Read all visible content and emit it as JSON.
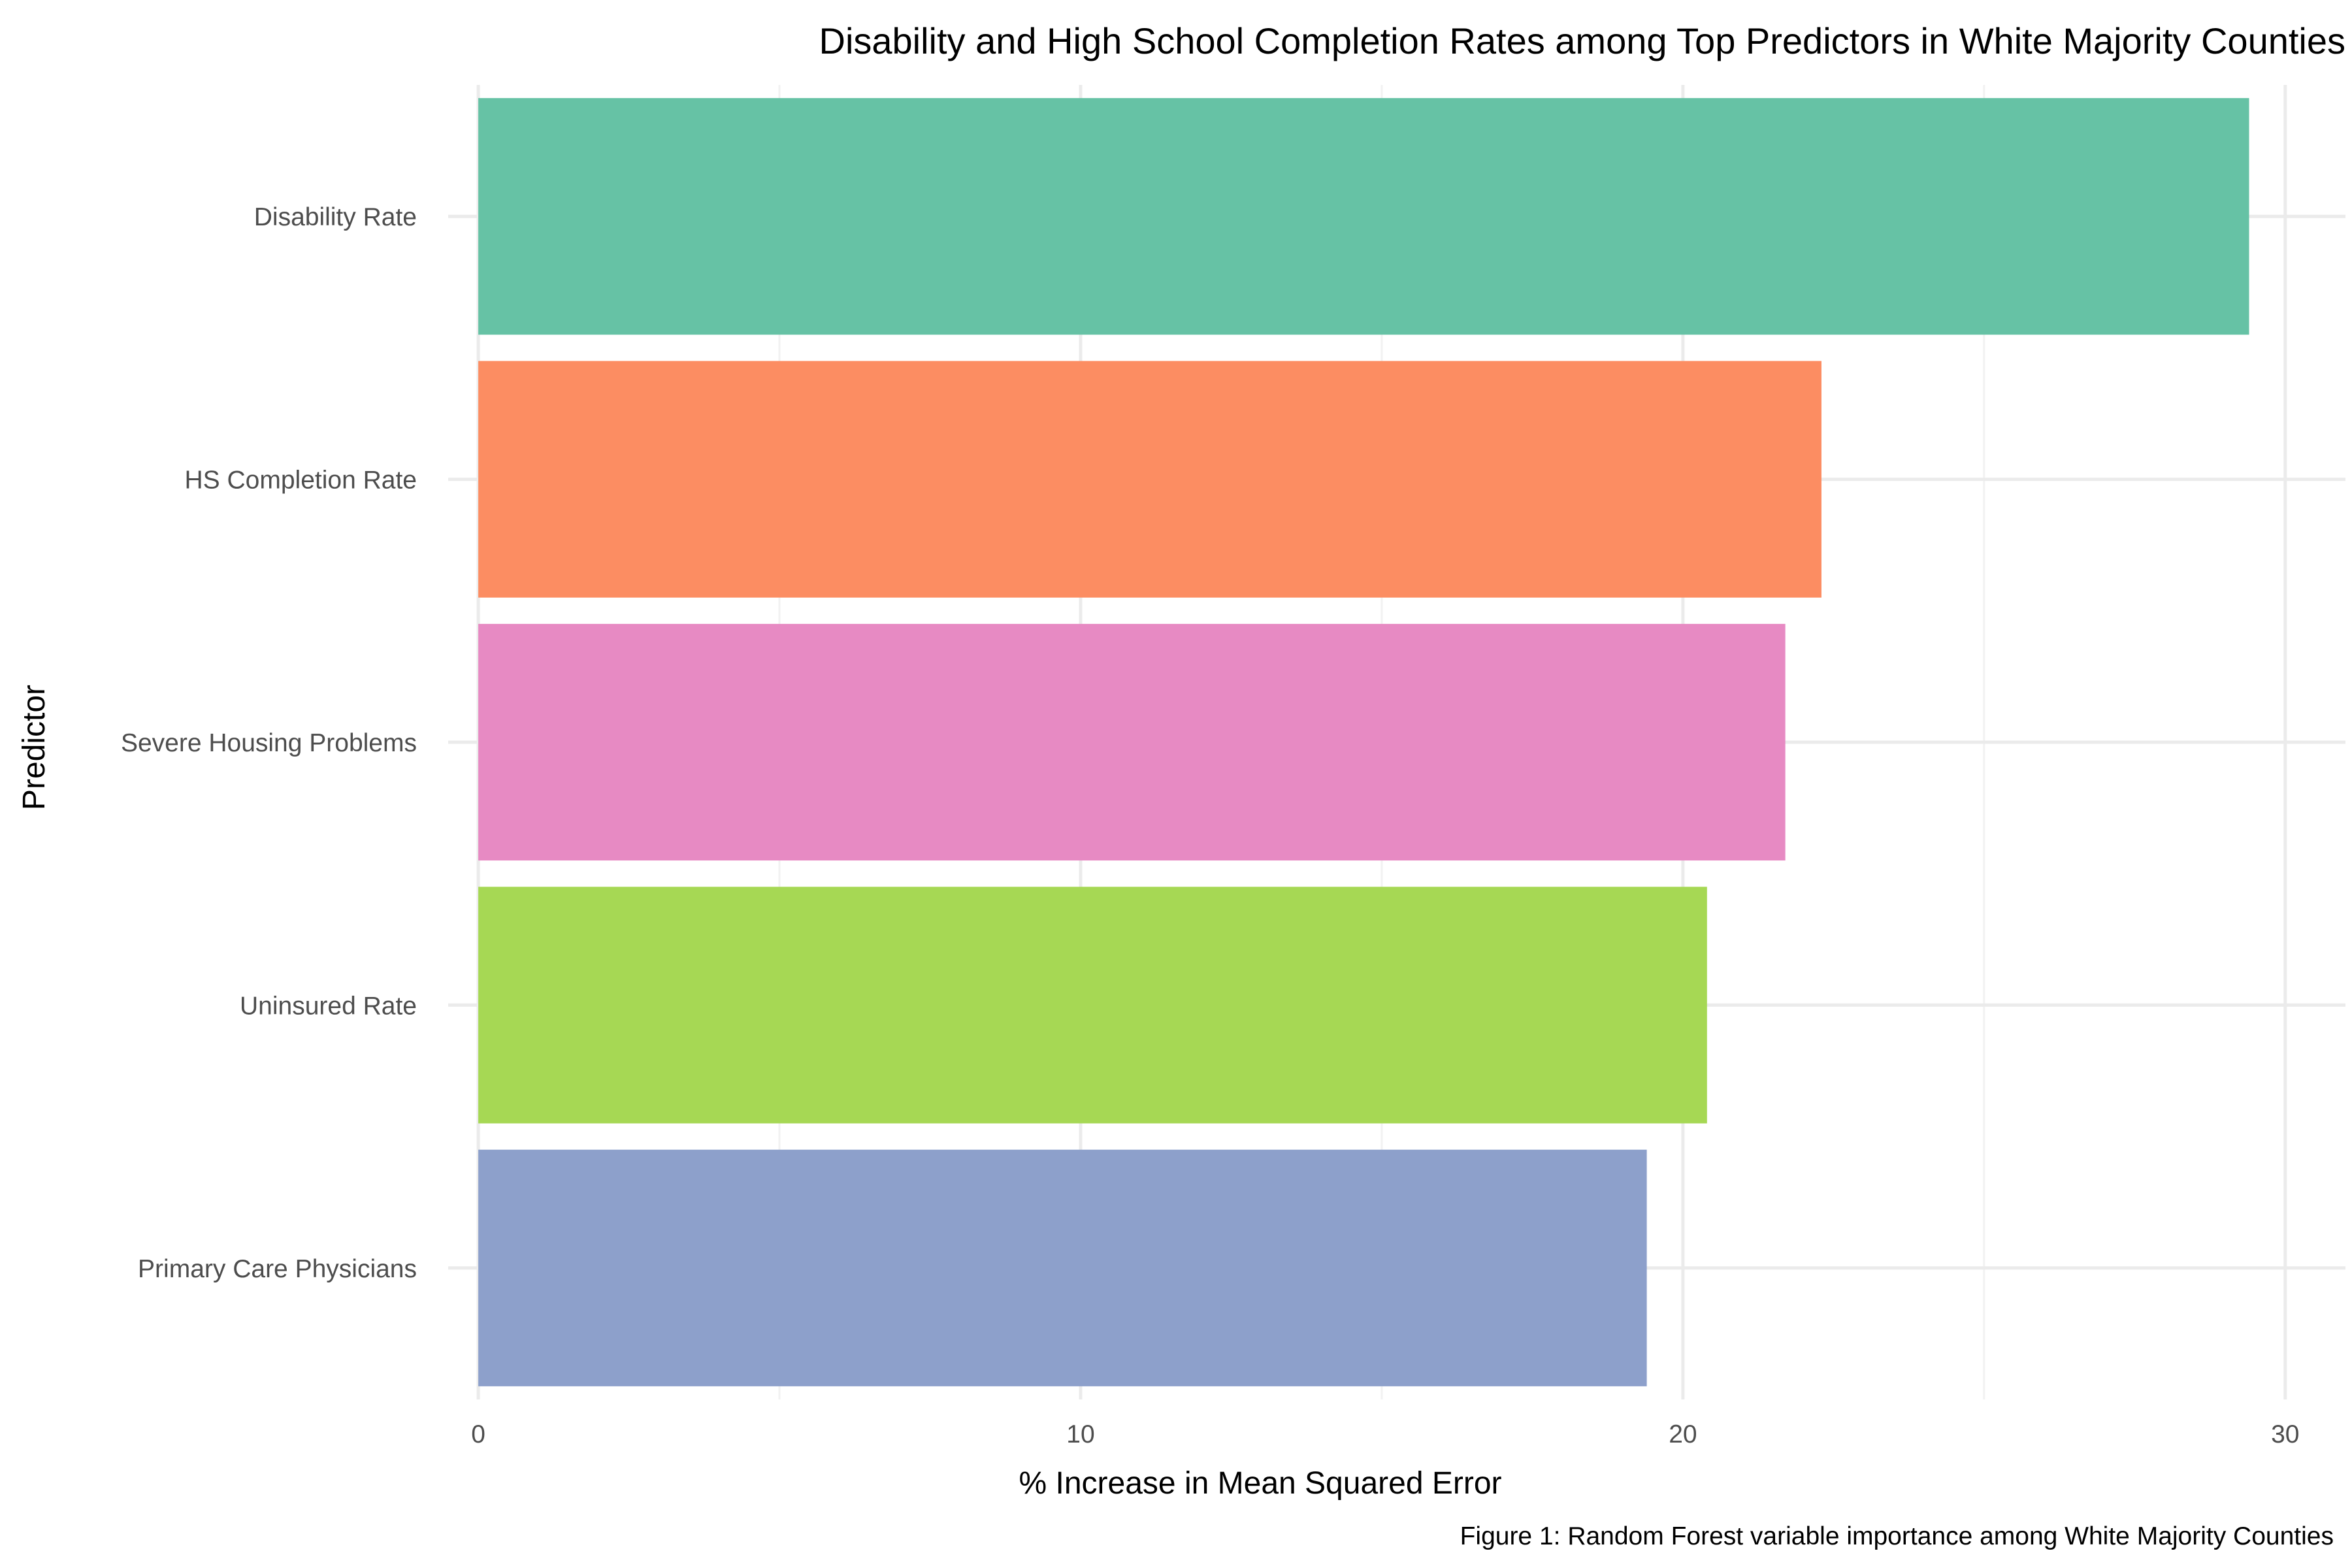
{
  "chart_data": {
    "type": "bar",
    "orientation": "horizontal",
    "title": "Disability and High School Completion Rates among Top Predictors in White Majority Counties",
    "xlabel": "% Increase in Mean Squared Error",
    "ylabel": "Predictor",
    "caption": "Figure 1: Random Forest variable importance among White Majority Counties",
    "xlim": [
      -0.5,
      31.0
    ],
    "xticks": [
      0,
      10,
      20,
      30
    ],
    "xtick_labels": [
      "0",
      "10",
      "20",
      "30"
    ],
    "grid": true,
    "legend": "none",
    "categories": [
      "Disability Rate",
      "HS Completion Rate",
      "Severe Housing Problems",
      "Uninsured Rate",
      "Primary Care Physicians"
    ],
    "values": [
      29.4,
      22.3,
      21.7,
      20.4,
      19.4
    ],
    "colors": [
      "#66c2a5",
      "#fc8d62",
      "#e78ac3",
      "#a6d854",
      "#8da0cb"
    ]
  }
}
